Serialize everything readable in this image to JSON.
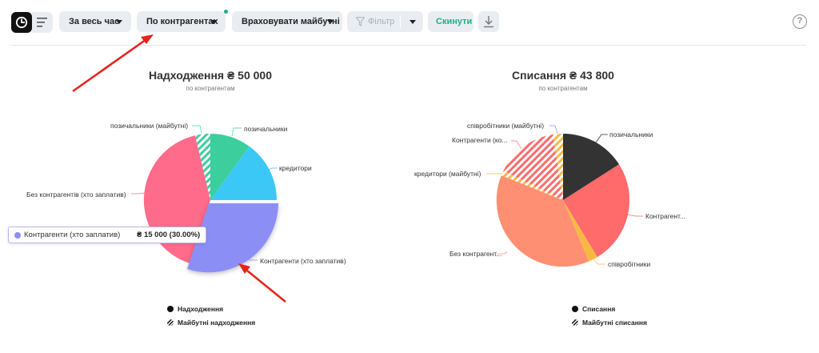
{
  "toolbar": {
    "period_label": "За весь час",
    "group_label": "По контрагентах",
    "future_label": "Враховувати майбутні",
    "filter_label": "Фільтр",
    "reset_label": "Скинути",
    "help_label": "?"
  },
  "colors": {
    "accent": "#1fae86",
    "income_pie": [
      "#3ccf9d",
      "#3cc8f7",
      "#8b8ff5",
      "#ff6b8b"
    ],
    "expense_pie": [
      "#333333",
      "#ff6a6a",
      "#f5b942",
      "#ff8f73"
    ]
  },
  "income": {
    "title": "Надходження ₴ 50 000",
    "subtitle": "по контрагентам",
    "labels": {
      "debtors_future": "позичальники (майбутні)",
      "debtors": "позичальники",
      "creditors": "кредитори",
      "no_counterparty": "Без контрагентів (хто заплатив)",
      "counterparties": "Контрагенти (хто заплатив)"
    },
    "tooltip": {
      "name": "Контрагенти (хто заплатив)",
      "value": "₴ 15 000 (30.00%)"
    },
    "legend": {
      "actual": "Надходження",
      "future": "Майбутні надходження"
    }
  },
  "expense": {
    "title": "Списання ₴ 43 800",
    "subtitle": "по контрагентам",
    "labels": {
      "employees_future": "співробітники (майбутні)",
      "counterparties_future": "Контрагенти (ко...",
      "debtors": "позичальники",
      "creditors_future": "кредитори (майбутні)",
      "counterparties": "Контрагент...",
      "no_counterparty": "Без контрагент...",
      "employees": "співробітники"
    },
    "legend": {
      "actual": "Списання",
      "future": "Майбутні списання"
    }
  }
}
